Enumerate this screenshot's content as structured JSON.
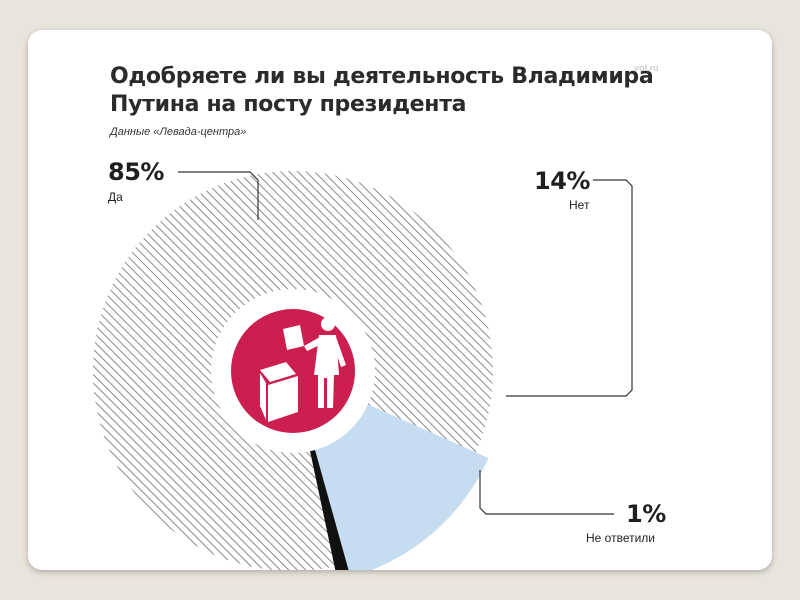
{
  "brand": "vol.ru",
  "chart_data": {
    "type": "pie",
    "title": "Одобряете ли вы деятельность Владимира Путина на посту президента",
    "subtitle": "Данные «Левада-центра»",
    "categories": [
      "Да",
      "Нет",
      "Не ответили"
    ],
    "values": [
      85,
      14,
      1
    ],
    "labels": [
      "85%",
      "14%",
      "1%"
    ],
    "colors": [
      "#8a8a8a",
      "#c5dcf1",
      "#111111"
    ],
    "center_circle_color": "#cc1f4f"
  }
}
